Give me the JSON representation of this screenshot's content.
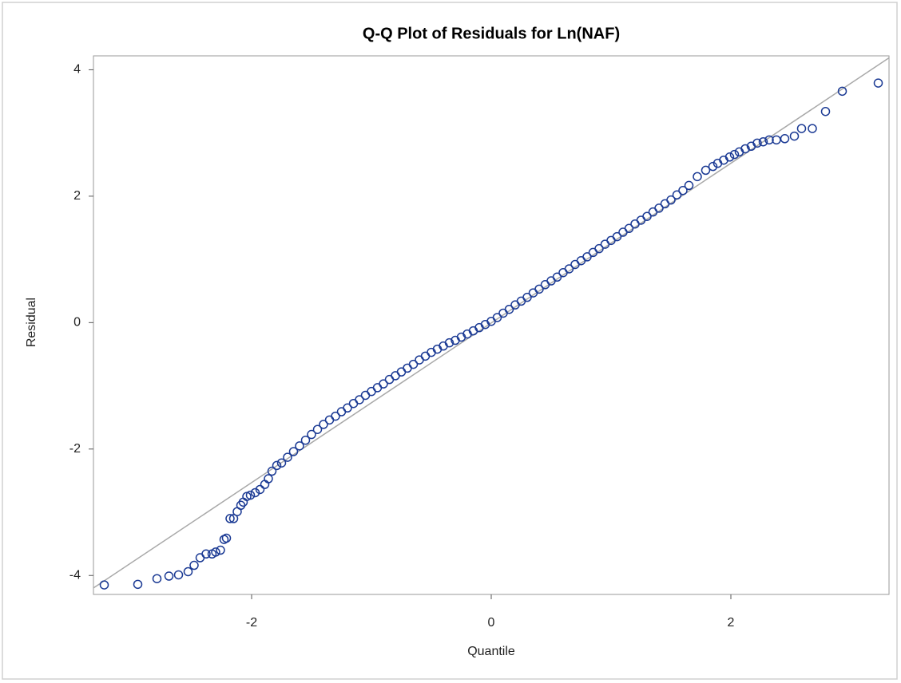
{
  "chart_data": {
    "type": "scatter",
    "title": "Q-Q Plot of Residuals for Ln(NAF)",
    "x_label": "Quantile",
    "y_label": "Residual",
    "color": "#1b3a94",
    "xlim": [
      -3.32,
      3.32
    ],
    "ylim": [
      -4.3,
      4.22
    ],
    "xticks": [
      -2,
      0,
      2
    ],
    "yticks": [
      -4,
      -2,
      0,
      2,
      4
    ],
    "grid": false,
    "reference_line": {
      "slope": 1.263,
      "intercept": -0.005,
      "color": "#a8a8a8"
    },
    "x": [
      -3.23,
      -2.95,
      -2.79,
      -2.69,
      -2.61,
      -2.53,
      -2.48,
      -2.43,
      -2.38,
      -2.33,
      -2.3,
      -2.26,
      -2.23,
      -2.21,
      -2.18,
      -2.15,
      -2.12,
      -2.09,
      -2.07,
      -2.04,
      -2.01,
      -1.97,
      -1.93,
      -1.89,
      -1.86,
      -1.83,
      -1.79,
      -1.75,
      -1.7,
      -1.65,
      -1.6,
      -1.55,
      -1.5,
      -1.45,
      -1.4,
      -1.35,
      -1.3,
      -1.25,
      -1.2,
      -1.15,
      -1.1,
      -1.05,
      -1.0,
      -0.95,
      -0.9,
      -0.85,
      -0.8,
      -0.75,
      -0.7,
      -0.65,
      -0.6,
      -0.55,
      -0.5,
      -0.45,
      -0.4,
      -0.35,
      -0.3,
      -0.25,
      -0.2,
      -0.15,
      -0.1,
      -0.05,
      0,
      0.05,
      0.1,
      0.15,
      0.2,
      0.25,
      0.3,
      0.35,
      0.4,
      0.45,
      0.5,
      0.55,
      0.6,
      0.65,
      0.7,
      0.75,
      0.8,
      0.85,
      0.9,
      0.95,
      1.0,
      1.05,
      1.1,
      1.15,
      1.2,
      1.25,
      1.3,
      1.35,
      1.4,
      1.45,
      1.5,
      1.55,
      1.6,
      1.65,
      1.72,
      1.79,
      1.85,
      1.89,
      1.94,
      1.99,
      2.03,
      2.07,
      2.12,
      2.17,
      2.22,
      2.27,
      2.32,
      2.38,
      2.45,
      2.53,
      2.59,
      2.68,
      2.79,
      2.93,
      3.23
    ],
    "values": [
      -4.15,
      -4.14,
      -4.05,
      -4.01,
      -3.99,
      -3.94,
      -3.84,
      -3.72,
      -3.66,
      -3.66,
      -3.63,
      -3.6,
      -3.43,
      -3.41,
      -3.1,
      -3.1,
      -2.99,
      -2.89,
      -2.84,
      -2.75,
      -2.73,
      -2.69,
      -2.64,
      -2.56,
      -2.47,
      -2.35,
      -2.26,
      -2.22,
      -2.13,
      -2.04,
      -1.95,
      -1.86,
      -1.77,
      -1.69,
      -1.61,
      -1.54,
      -1.48,
      -1.41,
      -1.35,
      -1.28,
      -1.22,
      -1.15,
      -1.09,
      -1.03,
      -0.97,
      -0.9,
      -0.84,
      -0.78,
      -0.72,
      -0.66,
      -0.59,
      -0.53,
      -0.47,
      -0.42,
      -0.37,
      -0.32,
      -0.28,
      -0.23,
      -0.18,
      -0.13,
      -0.08,
      -0.03,
      0.02,
      0.08,
      0.15,
      0.21,
      0.28,
      0.34,
      0.4,
      0.47,
      0.53,
      0.6,
      0.66,
      0.72,
      0.79,
      0.85,
      0.92,
      0.98,
      1.04,
      1.11,
      1.17,
      1.24,
      1.3,
      1.36,
      1.43,
      1.49,
      1.56,
      1.62,
      1.68,
      1.75,
      1.81,
      1.88,
      1.94,
      2.02,
      2.09,
      2.17,
      2.31,
      2.41,
      2.47,
      2.52,
      2.57,
      2.62,
      2.66,
      2.7,
      2.75,
      2.79,
      2.84,
      2.86,
      2.89,
      2.89,
      2.91,
      2.95,
      3.07,
      3.07,
      3.34,
      3.66,
      3.79
    ]
  }
}
